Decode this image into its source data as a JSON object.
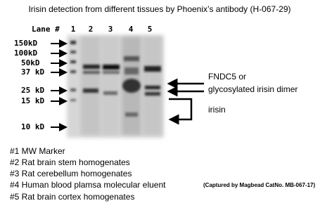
{
  "title": "Irisin detection from different tissues by Phoenix’s antibody (H-067-29)",
  "lanes": {
    "header": "Lane #",
    "labels": [
      "1",
      "2",
      "3",
      "4",
      "5"
    ]
  },
  "markers": [
    "150kD",
    "100kD",
    "50kD",
    "37 kD",
    "25 kD",
    "15 kD",
    "10 kD"
  ],
  "annotations": {
    "dimer": [
      "FNDC5 or",
      "glycosylated irisin dimer"
    ],
    "monomer": "irisin"
  },
  "legend": [
    "#1 MW Marker",
    "#2 Rat brain stem homogenates",
    "#3 Rat cerebellum homogenates",
    "#4 Human blood plamsa molecular eluent",
    "#5 Rat brain cortex homogenates"
  ],
  "caption": "(Captured by Magbead CatNo. MB-067-17)"
}
